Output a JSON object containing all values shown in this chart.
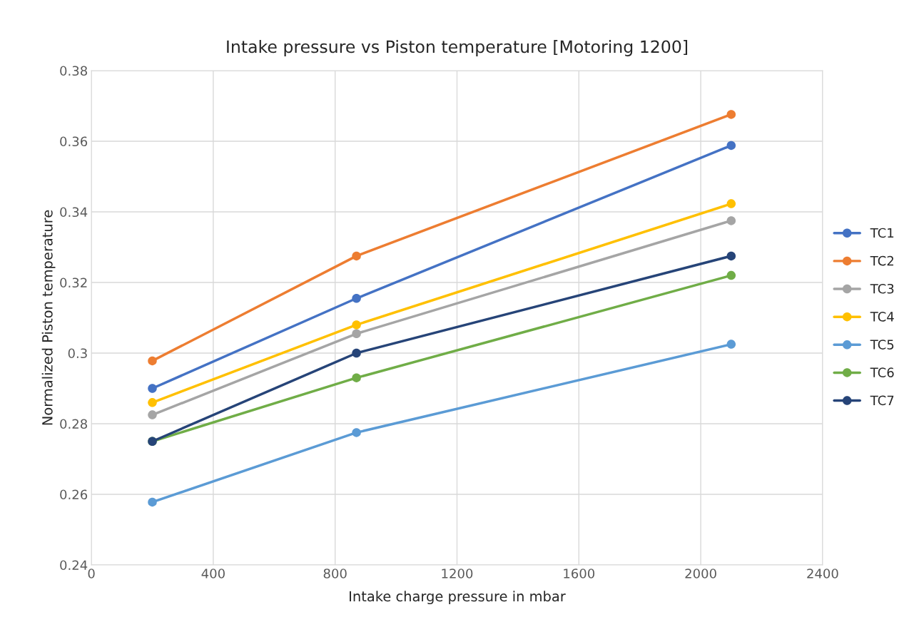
{
  "chart_data": {
    "type": "line",
    "title": "Intake pressure vs Piston temperature [Motoring 1200]",
    "xlabel": "Intake charge pressure in mbar",
    "ylabel": "Normalized Piston temperature",
    "x": [
      200,
      870,
      2100
    ],
    "series": [
      {
        "name": "TC1",
        "color": "#4472c4",
        "values": [
          0.29,
          0.3155,
          0.3588
        ]
      },
      {
        "name": "TC2",
        "color": "#ed7d31",
        "values": [
          0.2978,
          0.3275,
          0.3676
        ]
      },
      {
        "name": "TC3",
        "color": "#a5a5a5",
        "values": [
          0.2825,
          0.3055,
          0.3375
        ]
      },
      {
        "name": "TC4",
        "color": "#ffc000",
        "values": [
          0.286,
          0.308,
          0.3423
        ]
      },
      {
        "name": "TC5",
        "color": "#5b9bd5",
        "values": [
          0.2578,
          0.2775,
          0.3025
        ]
      },
      {
        "name": "TC6",
        "color": "#70ad47",
        "values": [
          0.275,
          0.293,
          0.322
        ]
      },
      {
        "name": "TC7",
        "color": "#264478",
        "values": [
          0.275,
          0.3,
          0.3275
        ]
      }
    ],
    "xlim": [
      0,
      2400
    ],
    "xticks": [
      0,
      400,
      800,
      1200,
      1600,
      2000,
      2400
    ],
    "ylim": [
      0.24,
      0.38
    ],
    "yticks": [
      0.24,
      0.26,
      0.28,
      0.3,
      0.32,
      0.34,
      0.36,
      0.38
    ],
    "grid": true,
    "legend": "right",
    "marker": "circle",
    "line_style": "solid"
  }
}
